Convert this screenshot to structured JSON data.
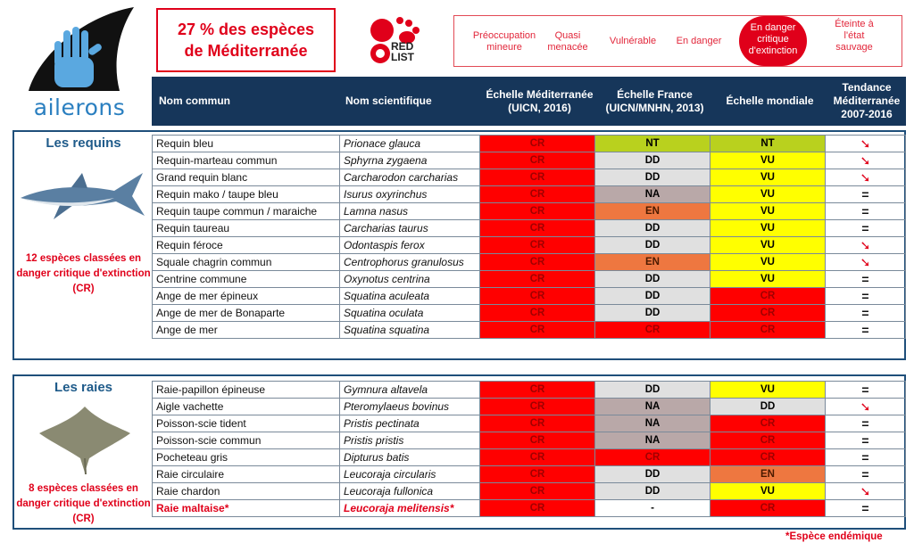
{
  "brand": {
    "logo_text": "ailerons"
  },
  "headline": {
    "line1": "27 % des espèces",
    "line2": "de Méditerranée"
  },
  "redlist": {
    "line1": "RED",
    "line2": "LIST"
  },
  "legend": {
    "items": [
      "Préoccupation mineure",
      "Quasi menacée",
      "Vulnérable",
      "En danger",
      "En danger critique d'extinction",
      "Éteinte à l'état sauvage"
    ],
    "highlight_color": "#e0001a"
  },
  "columns": {
    "common": "Nom commun",
    "scientific": "Nom scientifique",
    "med": "Échelle Méditerranée (UICN, 2016)",
    "france": "Échelle France (UICN/MNHN, 2013)",
    "world": "Échelle mondiale",
    "trend": "Tendance Méditerranée 2007-2016"
  },
  "colors": {
    "CR": "#ff0000",
    "EN": "#ee7740",
    "VU": "#ffff00",
    "NT": "#b9d11e",
    "DD": "#e0e0e0",
    "NA": "#b9a8a8",
    "header": "#16365a"
  },
  "groups": [
    {
      "title": "Les requins",
      "note": "12 espèces classées en danger critique d'extinction (CR)",
      "rows": [
        {
          "common": "Requin bleu",
          "scientific": "Prionace glauca",
          "med": "CR",
          "france": "NT",
          "world": "NT",
          "trend": "down"
        },
        {
          "common": "Requin-marteau commun",
          "scientific": "Sphyrna zygaena",
          "med": "CR",
          "france": "DD",
          "world": "VU",
          "trend": "down"
        },
        {
          "common": "Grand requin blanc",
          "scientific": "Carcharodon carcharias",
          "med": "CR",
          "france": "DD",
          "world": "VU",
          "trend": "down"
        },
        {
          "common": "Requin mako / taupe bleu",
          "scientific": "Isurus oxyrinchus",
          "med": "CR",
          "france": "NA",
          "world": "VU",
          "trend": "="
        },
        {
          "common": "Requin taupe commun / maraiche",
          "scientific": "Lamna nasus",
          "med": "CR",
          "france": "EN",
          "world": "VU",
          "trend": "="
        },
        {
          "common": "Requin taureau",
          "scientific": "Carcharias taurus",
          "med": "CR",
          "france": "DD",
          "world": "VU",
          "trend": "="
        },
        {
          "common": "Requin féroce",
          "scientific": "Odontaspis ferox",
          "med": "CR",
          "france": "DD",
          "world": "VU",
          "trend": "down"
        },
        {
          "common": "Squale chagrin commun",
          "scientific": "Centrophorus granulosus",
          "med": "CR",
          "france": "EN",
          "world": "VU",
          "trend": "down"
        },
        {
          "common": "Centrine commune",
          "scientific": "Oxynotus centrina",
          "med": "CR",
          "france": "DD",
          "world": "VU",
          "trend": "="
        },
        {
          "common": "Ange de mer épineux",
          "scientific": "Squatina aculeata",
          "med": "CR",
          "france": "DD",
          "world": "CR",
          "trend": "="
        },
        {
          "common": "Ange de mer de Bonaparte",
          "scientific": "Squatina oculata",
          "med": "CR",
          "france": "DD",
          "world": "CR",
          "trend": "="
        },
        {
          "common": "Ange de mer",
          "scientific": "Squatina squatina",
          "med": "CR",
          "france": "CR",
          "world": "CR",
          "trend": "="
        }
      ]
    },
    {
      "title": "Les raies",
      "note": "8 espèces classées en danger critique d'extinction (CR)",
      "rows": [
        {
          "common": "Raie-papillon épineuse",
          "scientific": "Gymnura altavela",
          "med": "CR",
          "france": "DD",
          "world": "VU",
          "trend": "="
        },
        {
          "common": "Aigle vachette",
          "scientific": "Pteromylaeus bovinus",
          "med": "CR",
          "france": "NA",
          "world": "DD",
          "trend": "down"
        },
        {
          "common": "Poisson-scie tident",
          "scientific": "Pristis pectinata",
          "med": "CR",
          "france": "NA",
          "world": "CR",
          "trend": "="
        },
        {
          "common": "Poisson-scie commun",
          "scientific": "Pristis pristis",
          "med": "CR",
          "france": "NA",
          "world": "CR",
          "trend": "="
        },
        {
          "common": "Pocheteau gris",
          "scientific": "Dipturus batis",
          "med": "CR",
          "france": "CR",
          "world": "CR",
          "trend": "="
        },
        {
          "common": "Raie circulaire",
          "scientific": "Leucoraja circularis",
          "med": "CR",
          "france": "DD",
          "world": "EN",
          "trend": "="
        },
        {
          "common": "Raie chardon",
          "scientific": "Leucoraja fullonica",
          "med": "CR",
          "france": "DD",
          "world": "VU",
          "trend": "down"
        },
        {
          "common": "Raie maltaise*",
          "scientific": "Leucoraja melitensis*",
          "med": "CR",
          "france": "-",
          "world": "CR",
          "trend": "=",
          "endemic": true
        }
      ]
    }
  ],
  "footnote": "*Espèce endémique"
}
